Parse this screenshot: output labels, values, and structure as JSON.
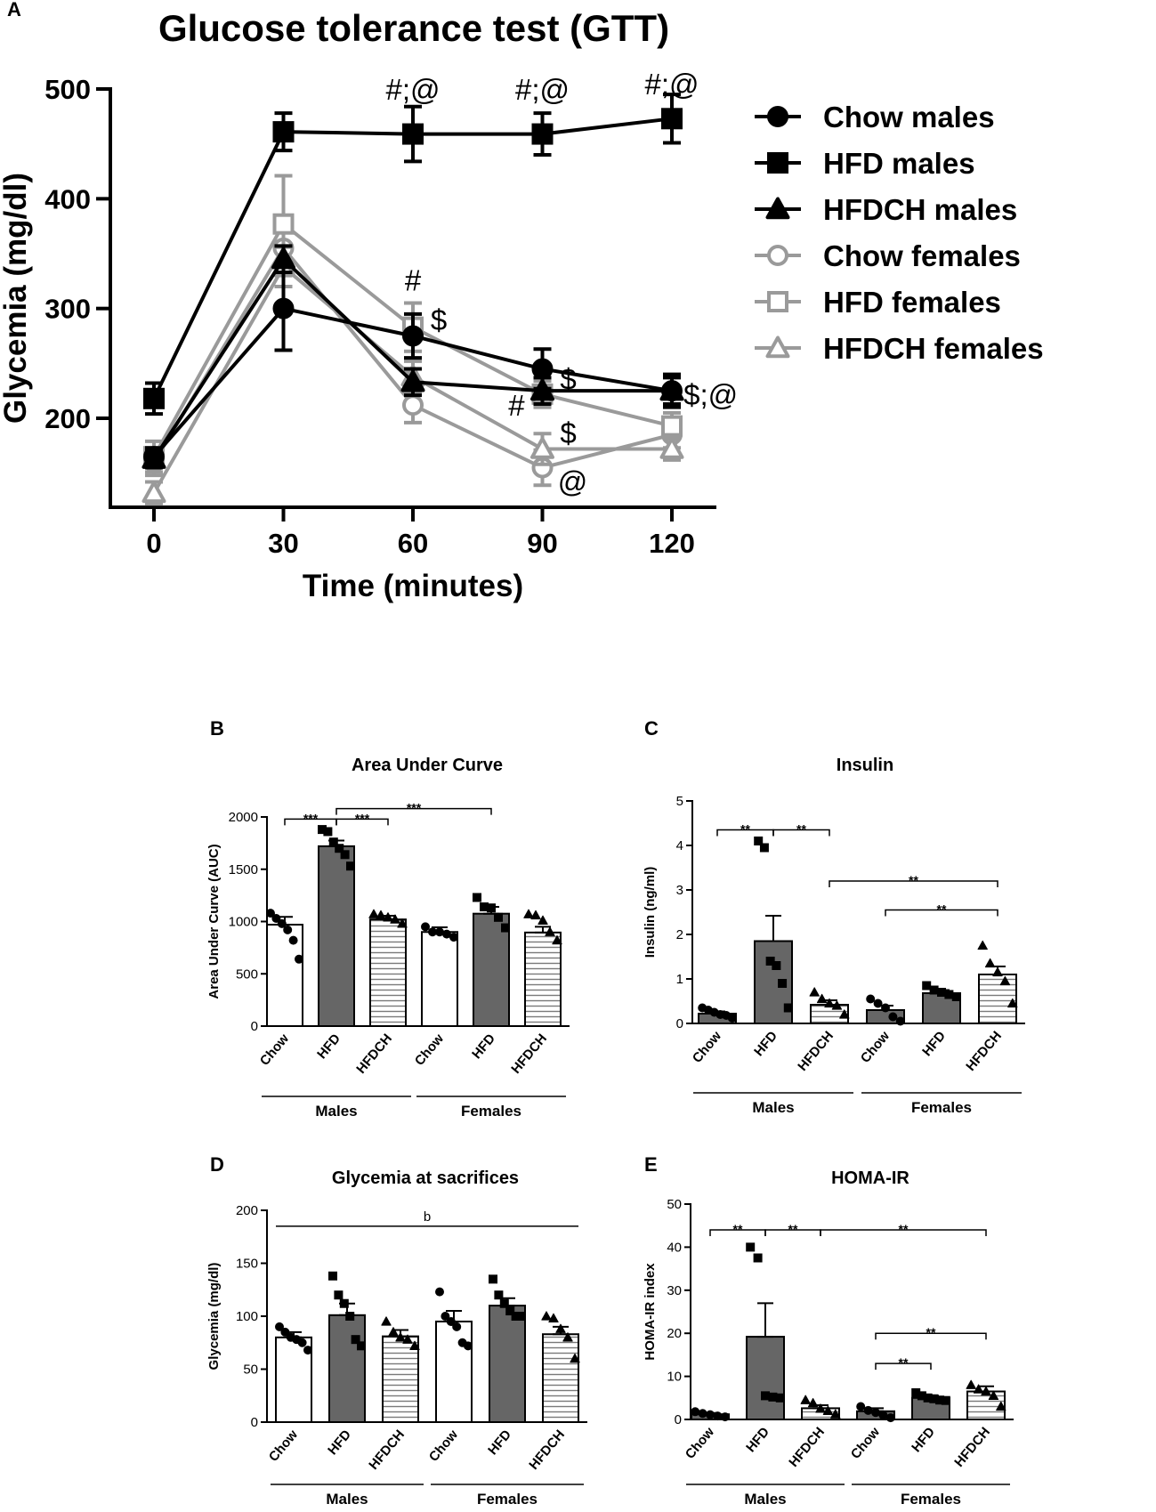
{
  "chart_data": [
    {
      "id": "A",
      "type": "line",
      "panel_label": "A",
      "title": "Glucose tolerance test (GTT)",
      "xlabel": "Time (minutes)",
      "ylabel": "Glycemia (mg/dl)",
      "x": [
        0,
        30,
        60,
        90,
        120
      ],
      "xticks": [
        "0",
        "30",
        "60",
        "90",
        "120"
      ],
      "yticks": [
        "200",
        "300",
        "400",
        "500"
      ],
      "ylim": [
        120,
        500
      ],
      "series": [
        {
          "name": "Chow males",
          "color": "#000000",
          "marker": "circle",
          "filled": true,
          "values": [
            165,
            300,
            275,
            245,
            225
          ],
          "errors": [
            8,
            38,
            20,
            18,
            15
          ]
        },
        {
          "name": "HFD males",
          "color": "#000000",
          "marker": "square",
          "filled": true,
          "values": [
            218,
            461,
            459,
            459,
            473
          ],
          "errors": [
            14,
            17,
            25,
            19,
            22
          ]
        },
        {
          "name": "HFDCH males",
          "color": "#000000",
          "marker": "triangle",
          "filled": true,
          "values": [
            163,
            345,
            233,
            225,
            225
          ],
          "errors": [
            8,
            12,
            12,
            12,
            12
          ]
        },
        {
          "name": "Chow females",
          "color": "#9a9a9a",
          "marker": "circle",
          "filled": false,
          "values": [
            160,
            355,
            212,
            155,
            185
          ],
          "errors": [
            12,
            25,
            16,
            16,
            12
          ]
        },
        {
          "name": "HFD females",
          "color": "#9a9a9a",
          "marker": "square",
          "filled": false,
          "values": [
            165,
            377,
            283,
            222,
            193
          ],
          "errors": [
            14,
            44,
            22,
            12,
            12
          ]
        },
        {
          "name": "HFDCH females",
          "color": "#9a9a9a",
          "marker": "triangle",
          "filled": false,
          "values": [
            132,
            338,
            238,
            172,
            172
          ],
          "errors": [
            10,
            18,
            14,
            14,
            10
          ]
        }
      ],
      "annotations": [
        {
          "text": "#;@",
          "x": 60,
          "y": 500
        },
        {
          "text": "#;@",
          "x": 90,
          "y": 500
        },
        {
          "text": "#;@",
          "x": 120,
          "y": 505
        },
        {
          "text": "#",
          "x": 60,
          "y": 326
        },
        {
          "text": "$",
          "x": 66,
          "y": 290
        },
        {
          "text": "$",
          "x": 96,
          "y": 236
        },
        {
          "text": "#",
          "x": 84,
          "y": 212
        },
        {
          "text": "$",
          "x": 96,
          "y": 187
        },
        {
          "text": "@",
          "x": 97,
          "y": 143
        },
        {
          "text": "$;@",
          "x": 129,
          "y": 222
        }
      ]
    },
    {
      "id": "B",
      "type": "bar",
      "panel_label": "B",
      "title": "Area Under Curve",
      "ylabel": "Area Under Curve (AUC)",
      "categories": [
        "Chow",
        "HFD",
        "HFDCH",
        "Chow",
        "HFD",
        "HFDCH"
      ],
      "groups": [
        "Males",
        "Females"
      ],
      "ylim": [
        0,
        2000
      ],
      "yticks": [
        "0",
        "500",
        "1000",
        "1500",
        "2000"
      ],
      "values": [
        970,
        1720,
        1020,
        900,
        1075,
        895
      ],
      "errors": [
        75,
        55,
        35,
        45,
        65,
        55
      ],
      "fills": [
        "white",
        "dark",
        "striped",
        "white",
        "dark",
        "striped"
      ],
      "markers": [
        "circle",
        "square",
        "triangle",
        "circle",
        "square",
        "triangle"
      ],
      "points": [
        [
          1080,
          1030,
          980,
          920,
          820,
          640
        ],
        [
          1880,
          1860,
          1760,
          1700,
          1640,
          1530
        ],
        [
          1070,
          1060,
          1040,
          1020,
          980
        ],
        [
          950,
          900,
          900,
          880,
          850
        ],
        [
          1230,
          1140,
          1130,
          1040,
          940
        ],
        [
          1070,
          1060,
          1010,
          900,
          820
        ]
      ],
      "comparisons": [
        {
          "from": 0,
          "to": 1,
          "label": "***",
          "level": 1980
        },
        {
          "from": 1,
          "to": 2,
          "label": "***",
          "level": 1980
        },
        {
          "from": 1,
          "to": 4,
          "label": "***",
          "level": 2080
        }
      ]
    },
    {
      "id": "C",
      "type": "bar",
      "panel_label": "C",
      "title": "Insulin",
      "ylabel": "Insulin (ng/ml)",
      "categories": [
        "Chow",
        "HFD",
        "HFDCH",
        "Chow",
        "HFD",
        "HFDCH"
      ],
      "groups": [
        "Males",
        "Females"
      ],
      "ylim": [
        0,
        5
      ],
      "yticks": [
        "0",
        "1",
        "2",
        "3",
        "4",
        "5"
      ],
      "values": [
        0.22,
        1.85,
        0.42,
        0.3,
        0.68,
        1.1
      ],
      "errors": [
        0.05,
        0.57,
        0.1,
        0.1,
        0.07,
        0.18
      ],
      "fills": [
        "dark",
        "dark",
        "striped",
        "dark",
        "dark",
        "striped"
      ],
      "markers": [
        "circle",
        "square",
        "triangle",
        "circle",
        "square",
        "triangle"
      ],
      "points": [
        [
          0.35,
          0.3,
          0.25,
          0.2,
          0.18,
          0.12
        ],
        [
          4.1,
          3.95,
          1.4,
          1.3,
          0.9,
          0.35
        ],
        [
          0.7,
          0.55,
          0.45,
          0.4,
          0.2
        ],
        [
          0.55,
          0.45,
          0.35,
          0.15,
          0.05
        ],
        [
          0.85,
          0.75,
          0.7,
          0.65,
          0.6
        ],
        [
          1.75,
          1.35,
          1.15,
          0.95,
          0.45
        ]
      ],
      "comparisons": [
        {
          "from": 0,
          "to": 1,
          "label": "**",
          "level": 4.35
        },
        {
          "from": 1,
          "to": 2,
          "label": "**",
          "level": 4.35
        },
        {
          "from": 2,
          "to": 5,
          "label": "**",
          "level": 3.2
        },
        {
          "from": 3,
          "to": 5,
          "label": "**",
          "level": 2.55
        }
      ]
    },
    {
      "id": "D",
      "type": "bar",
      "panel_label": "D",
      "title": "Glycemia at sacrifices",
      "ylabel": "Glycemia (mg/dl)",
      "categories": [
        "Chow",
        "HFD",
        "HFDCH",
        "Chow",
        "HFD",
        "HFDCH"
      ],
      "groups": [
        "Males",
        "Females"
      ],
      "ylim": [
        0,
        200
      ],
      "yticks": [
        "0",
        "50",
        "100",
        "150",
        "200"
      ],
      "values": [
        80,
        101,
        81,
        95,
        110,
        83
      ],
      "errors": [
        5,
        11,
        6,
        10,
        7,
        7
      ],
      "fills": [
        "white",
        "dark",
        "striped",
        "white",
        "dark",
        "striped"
      ],
      "markers": [
        "circle",
        "square",
        "triangle",
        "circle",
        "square",
        "triangle"
      ],
      "points": [
        [
          90,
          85,
          80,
          78,
          75,
          68
        ],
        [
          138,
          120,
          112,
          100,
          78,
          72
        ],
        [
          95,
          85,
          80,
          78,
          72
        ],
        [
          123,
          100,
          95,
          90,
          75,
          72
        ],
        [
          135,
          120,
          112,
          105,
          100,
          100
        ],
        [
          100,
          98,
          88,
          80,
          60
        ]
      ],
      "overall_label": "b",
      "overall_level": 185
    },
    {
      "id": "E",
      "type": "bar",
      "panel_label": "E",
      "title": "HOMA-IR",
      "ylabel": "HOMA-IR index",
      "categories": [
        "Chow",
        "HFD",
        "HFDCH",
        "Chow",
        "HFD",
        "HFDCH"
      ],
      "groups": [
        "Males",
        "Females"
      ],
      "ylim": [
        0,
        50
      ],
      "yticks": [
        "0",
        "10",
        "20",
        "30",
        "40",
        "50"
      ],
      "values": [
        1.2,
        19.2,
        2.6,
        1.9,
        5.0,
        6.5
      ],
      "errors": [
        0.3,
        7.8,
        0.7,
        0.7,
        0.5,
        1.2
      ],
      "fills": [
        "dark",
        "dark",
        "striped",
        "dark",
        "dark",
        "striped"
      ],
      "markers": [
        "circle",
        "square",
        "triangle",
        "circle",
        "square",
        "triangle"
      ],
      "points": [
        [
          1.8,
          1.4,
          1.1,
          0.8,
          0.6
        ],
        [
          40,
          37.5,
          5.5,
          5.2,
          5.0
        ],
        [
          4.5,
          3.8,
          2.5,
          2.0,
          1.2
        ],
        [
          3.0,
          2.1,
          1.6,
          1.0,
          0.4
        ],
        [
          6.2,
          5.5,
          5.0,
          4.8,
          4.5,
          4.4
        ],
        [
          8.0,
          7.0,
          6.5,
          5.5,
          3.0
        ]
      ],
      "comparisons": [
        {
          "from": 0,
          "to": 1,
          "label": "**",
          "level": 44
        },
        {
          "from": 1,
          "to": 2,
          "label": "**",
          "level": 44
        },
        {
          "from": 2,
          "to": 5,
          "label": "**",
          "level": 44
        },
        {
          "from": 3,
          "to": 5,
          "label": "**",
          "level": 20
        },
        {
          "from": 3,
          "to": 4,
          "label": "**",
          "level": 13
        }
      ]
    }
  ]
}
